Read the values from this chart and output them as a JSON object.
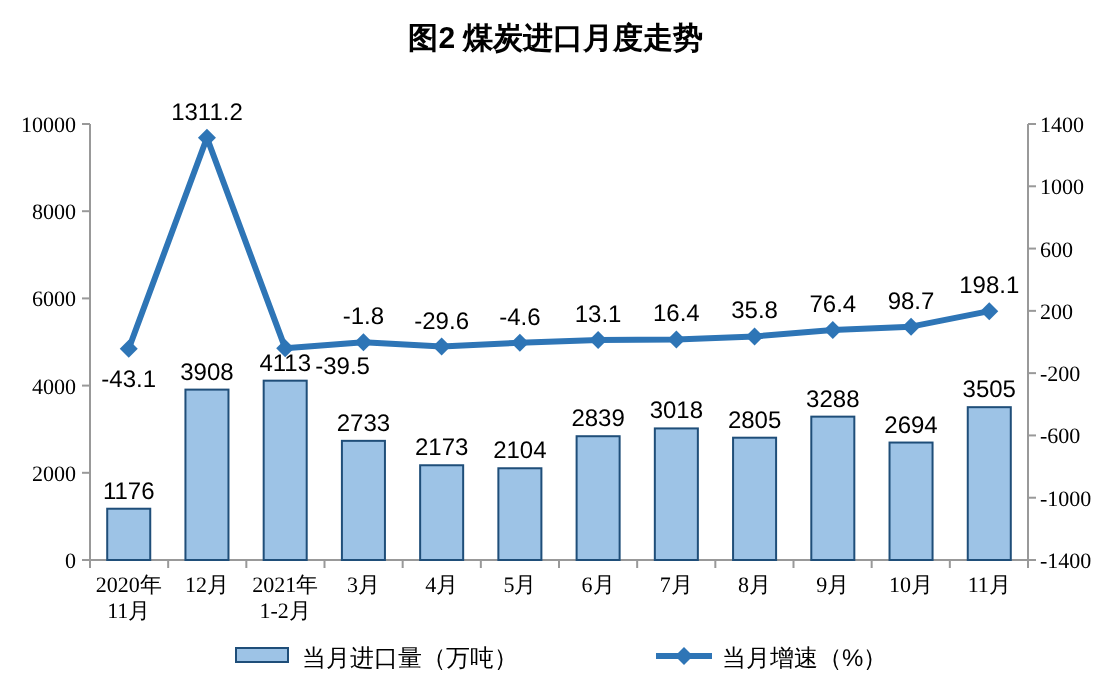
{
  "chart_data": {
    "type": "bar",
    "title": "图2  煤炭进口月度走势",
    "categories": [
      "2020年\n11月",
      "12月",
      "2021年\n1-2月",
      "3月",
      "4月",
      "5月",
      "6月",
      "7月",
      "8月",
      "9月",
      "10月",
      "11月"
    ],
    "series": [
      {
        "name": "当月进口量（万吨）",
        "color": "#9dc3e6",
        "values": [
          1176,
          3908,
          4113,
          2733,
          2173,
          2104,
          2839,
          3018,
          2805,
          3288,
          2694,
          3505
        ]
      },
      {
        "name": "当月增速（%）",
        "type": "line",
        "axis": "y2",
        "color": "#2e75b6",
        "marker": "diamond",
        "values": [
          -43.1,
          1311.2,
          -39.5,
          -1.8,
          -29.6,
          -4.6,
          13.1,
          16.4,
          35.8,
          76.4,
          98.7,
          198.1
        ]
      }
    ],
    "ylim": [
      0,
      10000
    ],
    "yticks": [
      0,
      2000,
      4000,
      6000,
      8000,
      10000
    ],
    "y2lim": [
      -1400,
      1400
    ],
    "y2ticks": [
      -1400,
      -1000,
      -600,
      -200,
      200,
      600,
      1000,
      1400
    ],
    "data_labels": true,
    "legend": "bottom",
    "grid": false
  }
}
